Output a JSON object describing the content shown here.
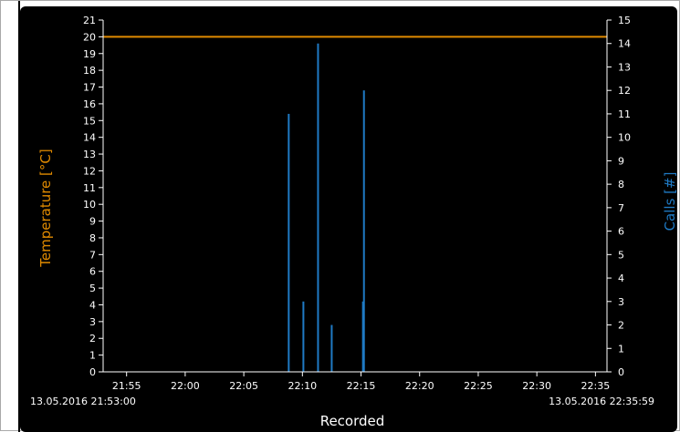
{
  "chart_data": {
    "type": "bar",
    "xlabel": "Recorded",
    "x_start_label": "13.05.2016 21:53:00",
    "x_end_label": "13.05.2016 22:35:59",
    "x_range": [
      "21:53:00",
      "22:35:59"
    ],
    "x_tick_labels": [
      "21:55",
      "22:00",
      "22:05",
      "22:10",
      "22:15",
      "22:20",
      "22:25",
      "22:30",
      "22:35"
    ],
    "left_axis": {
      "label": "Temperature [°C]",
      "color": "#e08a00",
      "range": [
        0,
        21
      ],
      "ticks": [
        0,
        1,
        2,
        3,
        4,
        5,
        6,
        7,
        8,
        9,
        10,
        11,
        12,
        13,
        14,
        15,
        16,
        17,
        18,
        19,
        20,
        21
      ]
    },
    "right_axis": {
      "label": "Calls [#]",
      "color": "#1f7ac4",
      "range": [
        0,
        15
      ],
      "ticks": [
        0,
        1,
        2,
        3,
        4,
        5,
        6,
        7,
        8,
        9,
        10,
        11,
        12,
        13,
        14,
        15
      ]
    },
    "series": [
      {
        "type": "line",
        "axis": "left",
        "color": "#e08a00",
        "points": [
          {
            "x": "21:53:00",
            "y": 20
          },
          {
            "x": "22:35:59",
            "y": 20
          }
        ]
      },
      {
        "type": "bar",
        "axis": "right",
        "color": "#1f7ac4",
        "points": [
          {
            "x": "22:08:50",
            "y": 11
          },
          {
            "x": "22:10:05",
            "y": 3
          },
          {
            "x": "22:11:20",
            "y": 14
          },
          {
            "x": "22:12:30",
            "y": 2
          },
          {
            "x": "22:15:10",
            "y": 3
          },
          {
            "x": "22:15:15",
            "y": 12
          }
        ]
      }
    ],
    "grid": false,
    "legend": "none"
  }
}
